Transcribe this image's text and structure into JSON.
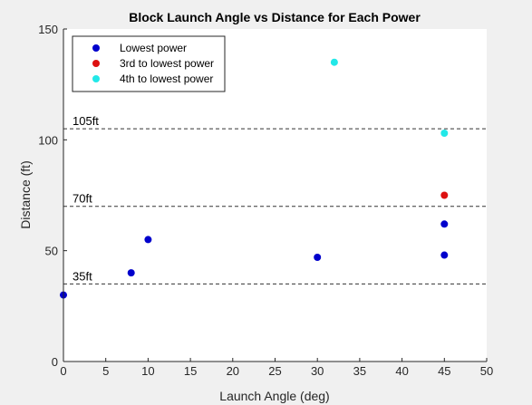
{
  "chart_data": {
    "type": "scatter",
    "title": "Block Launch Angle vs Distance for Each Power",
    "xlabel": "Launch Angle (deg)",
    "ylabel": "Distance (ft)",
    "xlim": [
      0,
      50
    ],
    "ylim": [
      0,
      150
    ],
    "xticks": [
      0,
      5,
      10,
      15,
      20,
      25,
      30,
      35,
      40,
      45,
      50
    ],
    "yticks": [
      0,
      50,
      100,
      150
    ],
    "grid": false,
    "legend_position": "top-left",
    "series": [
      {
        "name": "Lowest power",
        "color": "#0000cc",
        "points": [
          {
            "x": 0,
            "y": 30
          },
          {
            "x": 8,
            "y": 40
          },
          {
            "x": 10,
            "y": 55
          },
          {
            "x": 30,
            "y": 47
          },
          {
            "x": 45,
            "y": 62
          },
          {
            "x": 45,
            "y": 48
          }
        ]
      },
      {
        "name": "3rd to lowest power",
        "color": "#dd1111",
        "points": [
          {
            "x": 45,
            "y": 75
          }
        ]
      },
      {
        "name": "4th to lowest power",
        "color": "#22e8e8",
        "points": [
          {
            "x": 32,
            "y": 135
          },
          {
            "x": 45,
            "y": 103
          }
        ]
      }
    ],
    "reference_lines": [
      {
        "y": 105,
        "label": "105ft"
      },
      {
        "y": 70,
        "label": "70ft"
      },
      {
        "y": 35,
        "label": "35ft"
      }
    ]
  }
}
